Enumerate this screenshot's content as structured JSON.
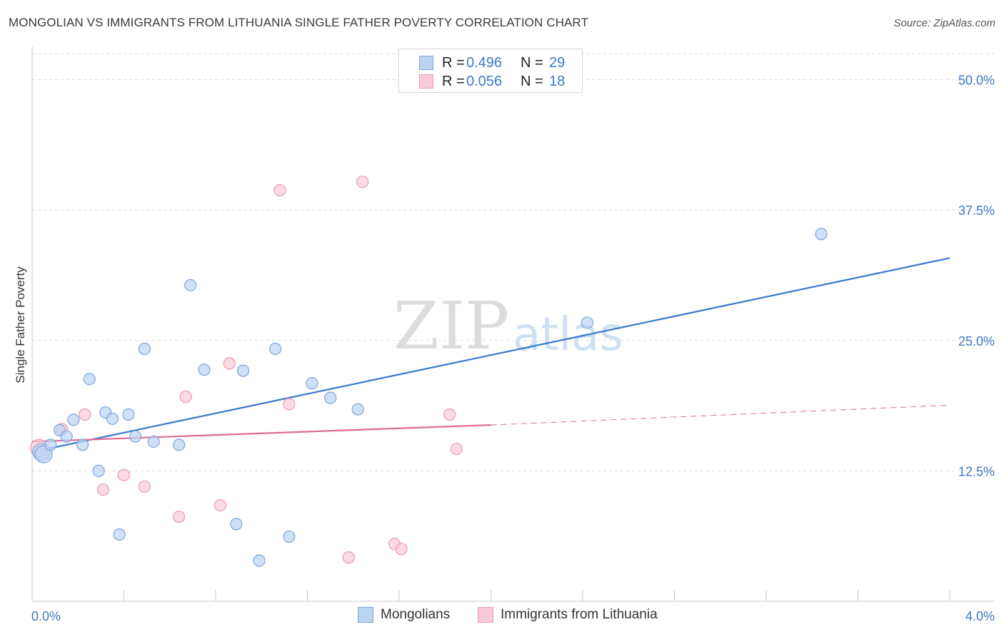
{
  "header": {
    "title": "MONGOLIAN VS IMMIGRANTS FROM LITHUANIA SINGLE FATHER POVERTY CORRELATION CHART",
    "source": "Source: ZipAtlas.com"
  },
  "watermark": {
    "zip": "ZIP",
    "atlas": "atlas"
  },
  "legend_top": [
    {
      "r_label": "R =",
      "r_value": "0.496",
      "n_label": "N =",
      "n_value": "29"
    },
    {
      "r_label": "R =",
      "r_value": "0.056",
      "n_label": "N =",
      "n_value": "18"
    }
  ],
  "colors": {
    "blue_fill": "#bcd3f2",
    "blue_stroke": "#7aa6de",
    "blue_line": "#3a78cf",
    "pink_fill": "#f9cad8",
    "pink_stroke": "#ea9ab4",
    "pink_line": "#e06c94",
    "axis_text": "#3c78c8",
    "grid": "#dcdcdc"
  },
  "chart_data": {
    "type": "scatter",
    "title": "MONGOLIAN VS IMMIGRANTS FROM LITHUANIA SINGLE FATHER POVERTY CORRELATION CHART",
    "xlabel": "",
    "ylabel": "Single Father Poverty",
    "xlim": [
      0,
      4.0
    ],
    "ylim": [
      0,
      52.5
    ],
    "x_tick_labels": [
      "0.0%",
      "4.0%"
    ],
    "y_ticks": [
      12.5,
      25.0,
      37.5,
      50.0
    ],
    "y_tick_labels": [
      "12.5%",
      "25.0%",
      "37.5%",
      "50.0%"
    ],
    "grid": true,
    "legend_position": "bottom-center",
    "series": [
      {
        "name": "Mongolians",
        "color": "blue",
        "points": [
          [
            0.04,
            14.3
          ],
          [
            0.05,
            14.1
          ],
          [
            0.08,
            15.0
          ],
          [
            0.12,
            16.4
          ],
          [
            0.15,
            15.8
          ],
          [
            0.18,
            17.4
          ],
          [
            0.22,
            15.0
          ],
          [
            0.25,
            21.3
          ],
          [
            0.29,
            12.5
          ],
          [
            0.32,
            18.1
          ],
          [
            0.35,
            17.5
          ],
          [
            0.38,
            6.4
          ],
          [
            0.42,
            17.9
          ],
          [
            0.45,
            15.8
          ],
          [
            0.49,
            24.2
          ],
          [
            0.53,
            15.3
          ],
          [
            0.64,
            15.0
          ],
          [
            0.69,
            30.3
          ],
          [
            0.75,
            22.2
          ],
          [
            0.89,
            7.4
          ],
          [
            0.92,
            22.1
          ],
          [
            0.99,
            3.9
          ],
          [
            1.06,
            24.2
          ],
          [
            1.12,
            6.2
          ],
          [
            1.22,
            20.9
          ],
          [
            1.3,
            19.5
          ],
          [
            1.42,
            18.4
          ],
          [
            2.42,
            26.7
          ],
          [
            3.44,
            35.2
          ]
        ],
        "trend": {
          "x": [
            0.0,
            4.0
          ],
          "y": [
            14.3,
            32.9
          ],
          "style": "solid"
        }
      },
      {
        "name": "Immigrants from Lithuania",
        "color": "pink",
        "points": [
          [
            0.03,
            14.7
          ],
          [
            0.13,
            16.5
          ],
          [
            0.23,
            17.9
          ],
          [
            0.31,
            10.7
          ],
          [
            0.4,
            12.1
          ],
          [
            0.49,
            11.0
          ],
          [
            0.64,
            8.1
          ],
          [
            0.67,
            19.6
          ],
          [
            0.82,
            9.2
          ],
          [
            0.86,
            22.8
          ],
          [
            1.08,
            39.4
          ],
          [
            1.12,
            18.9
          ],
          [
            1.38,
            4.2
          ],
          [
            1.44,
            40.2
          ],
          [
            1.58,
            5.5
          ],
          [
            1.61,
            5.0
          ],
          [
            1.82,
            17.9
          ],
          [
            1.85,
            14.6
          ]
        ],
        "trend": {
          "x": [
            0.0,
            2.0,
            4.0
          ],
          "y": [
            15.3,
            16.9,
            18.8
          ],
          "style": "solid-then-dashed"
        }
      }
    ]
  }
}
